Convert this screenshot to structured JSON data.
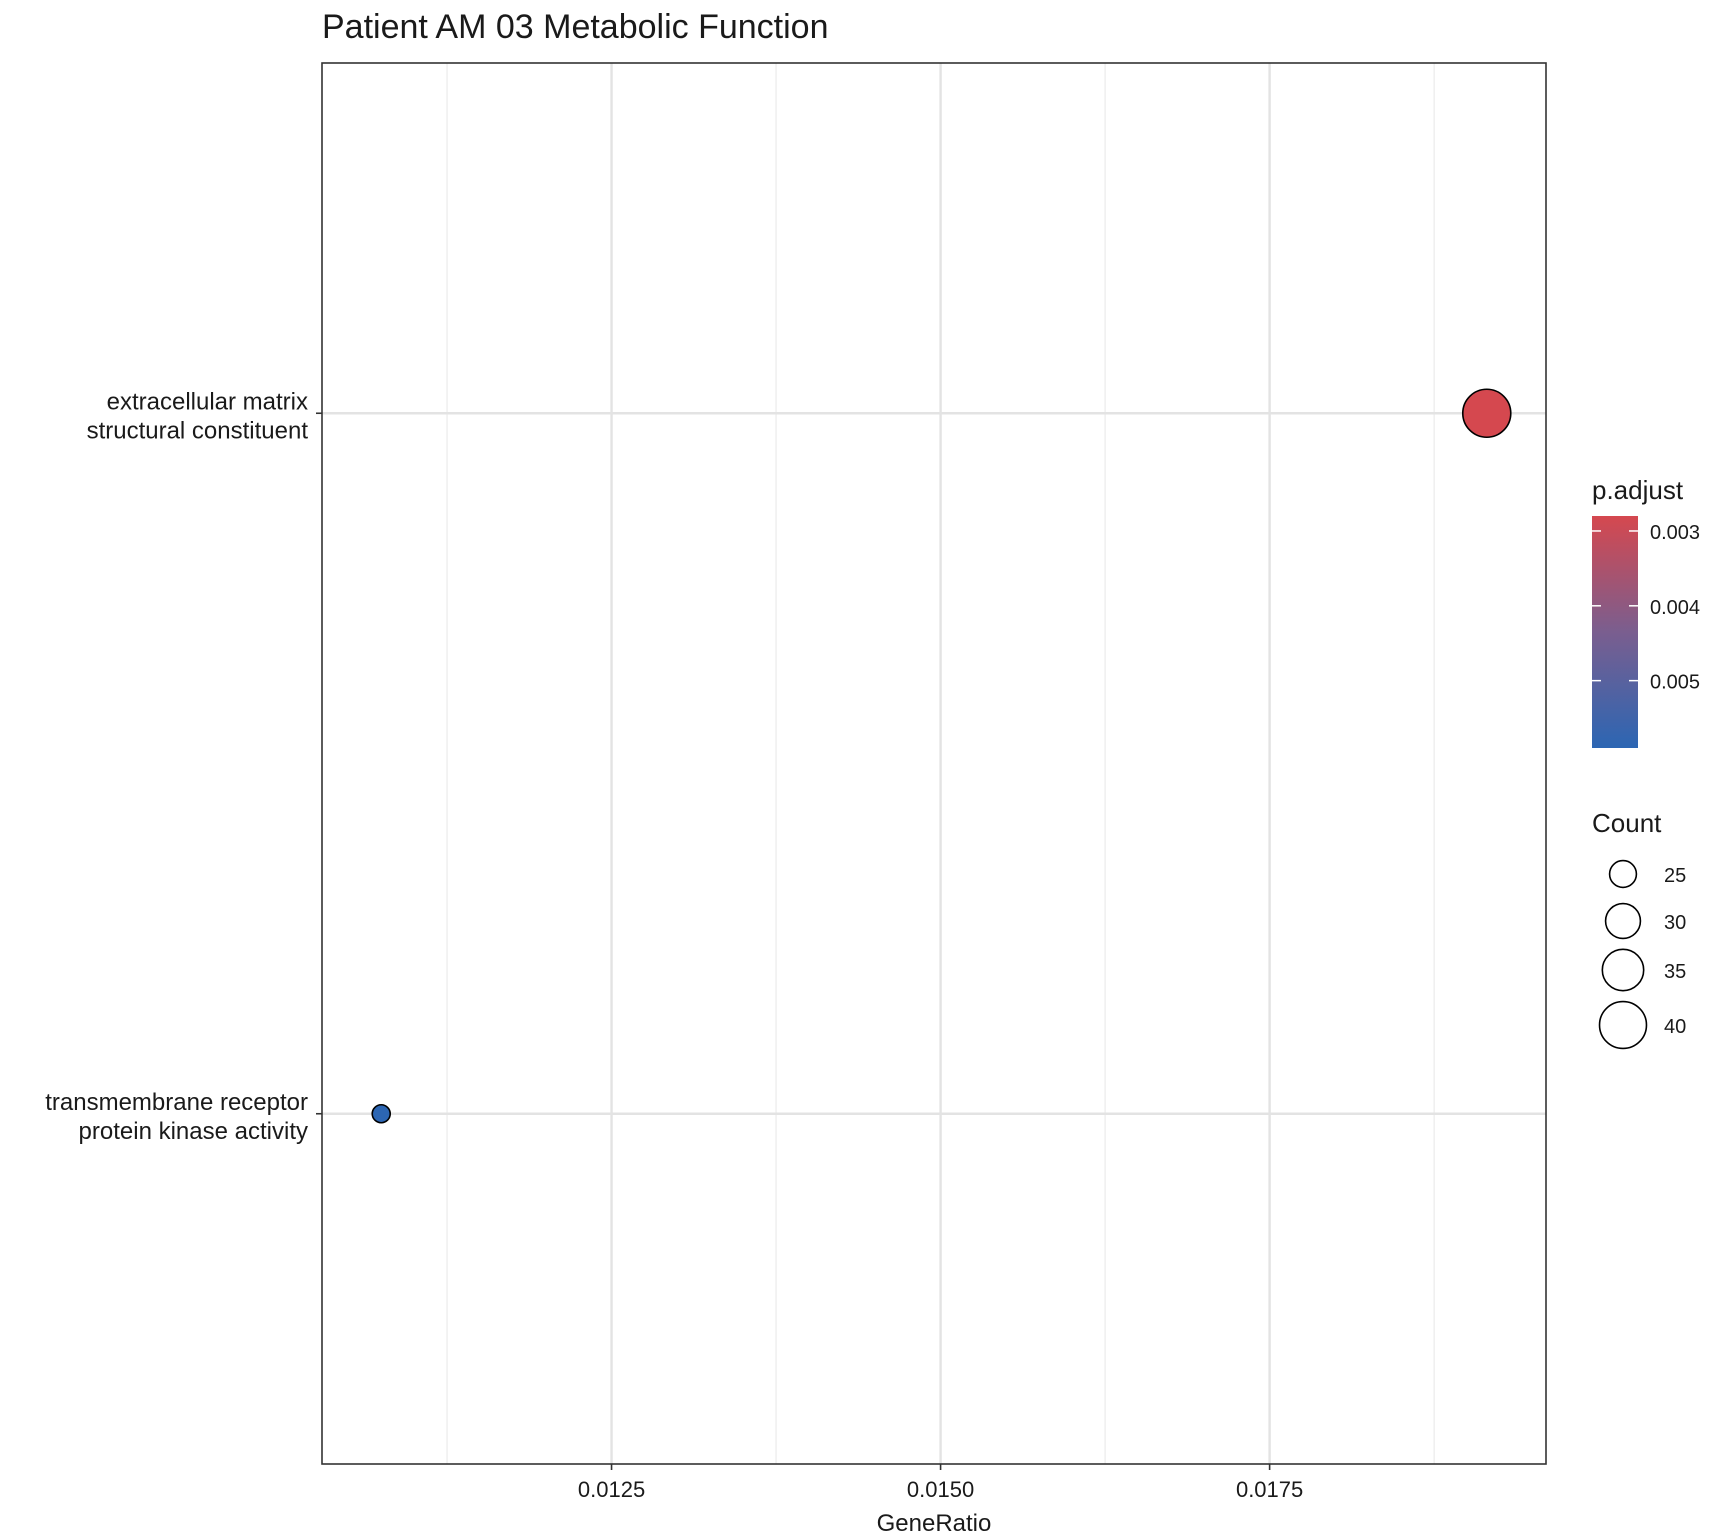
{
  "chart_data": {
    "type": "scatter",
    "title": "Patient AM 03 Metabolic Function",
    "xlabel": "GeneRatio",
    "ylabel": "",
    "xlim": [
      0.0103,
      0.0196
    ],
    "x_ticks": [
      0.0125,
      0.015,
      0.0175
    ],
    "x_tick_labels": [
      "0.0125",
      "0.0150",
      "0.0175"
    ],
    "x_minor_ticks": [
      0.01125,
      0.01375,
      0.01625,
      0.01875
    ],
    "categories": [
      {
        "lines": [
          "extracellular matrix",
          "structural constituent"
        ]
      },
      {
        "lines": [
          "transmembrane receptor",
          "protein kinase activity"
        ]
      }
    ],
    "points": [
      {
        "category_index": 0,
        "x": 0.01915,
        "count": 41,
        "p_adjust": 0.0028,
        "color": "#d5484f"
      },
      {
        "category_index": 1,
        "x": 0.01075,
        "count": 21,
        "p_adjust": 0.0059,
        "color": "#2c66b3"
      }
    ],
    "grid": true,
    "color_legend": {
      "title": "p.adjust",
      "range": [
        0.0028,
        0.0059
      ],
      "reverse": true,
      "ticks": [
        0.003,
        0.004,
        0.005
      ],
      "tick_labels": [
        "0.003",
        "0.004",
        "0.005"
      ],
      "color_low": "#d5484f",
      "color_high": "#2c66b3",
      "color_mid": "#7a5e8f"
    },
    "size_legend": {
      "title": "Count",
      "values": [
        25,
        30,
        35,
        40
      ],
      "labels": [
        "25",
        "30",
        "35",
        "40"
      ]
    },
    "legend_position": "right"
  }
}
